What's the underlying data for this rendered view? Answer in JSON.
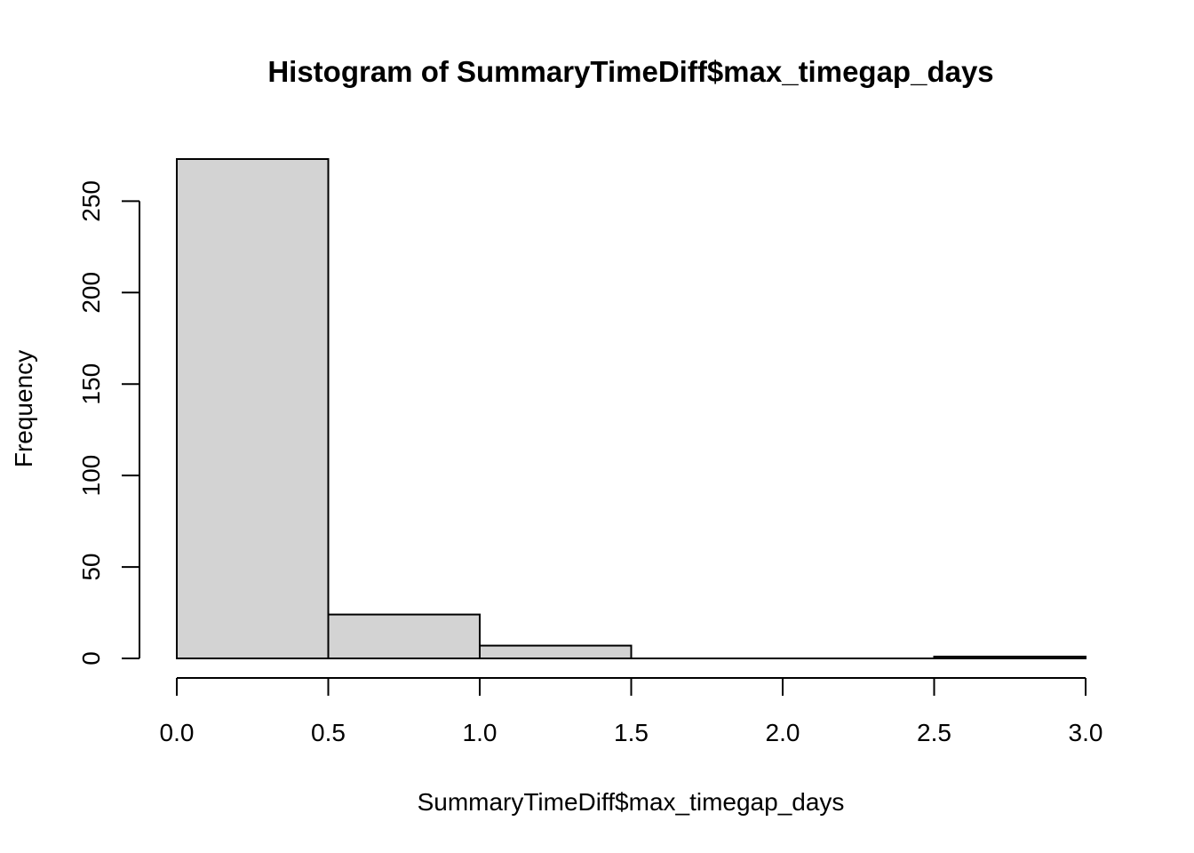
{
  "chart_data": {
    "type": "bar",
    "subtype": "histogram",
    "title": "Histogram of SummaryTimeDiff$max_timegap_days",
    "xlabel": "SummaryTimeDiff$max_timegap_days",
    "ylabel": "Frequency",
    "bins": [
      {
        "start": 0.0,
        "end": 0.5,
        "count": 273
      },
      {
        "start": 0.5,
        "end": 1.0,
        "count": 24
      },
      {
        "start": 1.0,
        "end": 1.5,
        "count": 7
      },
      {
        "start": 1.5,
        "end": 2.0,
        "count": 0
      },
      {
        "start": 2.0,
        "end": 2.5,
        "count": 0
      },
      {
        "start": 2.5,
        "end": 3.0,
        "count": 1
      }
    ],
    "xlim": [
      0,
      3
    ],
    "ylim": [
      0,
      273
    ],
    "x_ticks": [
      0.0,
      0.5,
      1.0,
      1.5,
      2.0,
      2.5,
      3.0
    ],
    "x_tick_labels": [
      "0.0",
      "0.5",
      "1.0",
      "1.5",
      "2.0",
      "2.5",
      "3.0"
    ],
    "y_ticks": [
      0,
      50,
      100,
      150,
      200,
      250
    ],
    "y_tick_labels": [
      "0",
      "50",
      "100",
      "150",
      "200",
      "250"
    ],
    "bar_color": "#d3d3d3",
    "border_color": "#000000",
    "grid": false,
    "legend": "none"
  }
}
